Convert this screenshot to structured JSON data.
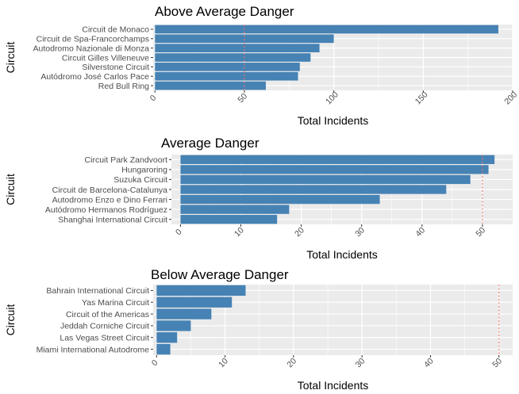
{
  "chart_data": [
    {
      "type": "bar",
      "orientation": "horizontal",
      "title": "Above Average Danger",
      "xlabel": "Total Incidents",
      "ylabel": "Circuit",
      "categories": [
        "Circuit de Monaco",
        "Circuit de Spa-Francorchamps",
        "Autodromo Nazionale di Monza",
        "Circuit Gilles Villeneuve",
        "Silverstone Circuit",
        "Autódromo José Carlos Pace",
        "Red Bull Ring"
      ],
      "values": [
        192,
        100,
        92,
        87,
        81,
        80,
        62
      ],
      "xlim": [
        -1,
        200
      ],
      "xticks": [
        0,
        50,
        100,
        150,
        200
      ],
      "reference_line": 50,
      "bar_color": "#4682B4",
      "reference_color": "#F8766D",
      "grid": true
    },
    {
      "type": "bar",
      "orientation": "horizontal",
      "title": "Average Danger",
      "xlabel": "Total Incidents",
      "ylabel": "Circuit",
      "categories": [
        "Circuit Park Zandvoort",
        "Hungaroring",
        "Suzuka Circuit",
        "Circuit de Barcelona-Catalunya",
        "Autodromo Enzo e Dino Ferrari",
        "Autódromo Hermanos Rodríguez",
        "Shanghai International Circuit"
      ],
      "values": [
        52,
        51,
        48,
        44,
        33,
        18,
        16
      ],
      "xlim": [
        -1.5,
        55
      ],
      "xticks": [
        0,
        10,
        20,
        30,
        40,
        50
      ],
      "reference_line": 50,
      "bar_color": "#4682B4",
      "reference_color": "#F8766D",
      "grid": true
    },
    {
      "type": "bar",
      "orientation": "horizontal",
      "title": "Below Average Danger",
      "xlabel": "Total Incidents",
      "ylabel": "Circuit",
      "categories": [
        "Bahrain International Circuit",
        "Yas Marina Circuit",
        "Circuit of the Americas",
        "Jeddah Corniche Circuit",
        "Las Vegas Street Circuit",
        "Miami International Autodrome"
      ],
      "values": [
        13,
        11,
        8,
        5,
        3,
        2
      ],
      "xlim": [
        -0.5,
        52
      ],
      "xticks": [
        0,
        10,
        20,
        30,
        40,
        50
      ],
      "reference_line": 50,
      "bar_color": "#4682B4",
      "reference_color": "#F8766D",
      "grid": true
    }
  ]
}
